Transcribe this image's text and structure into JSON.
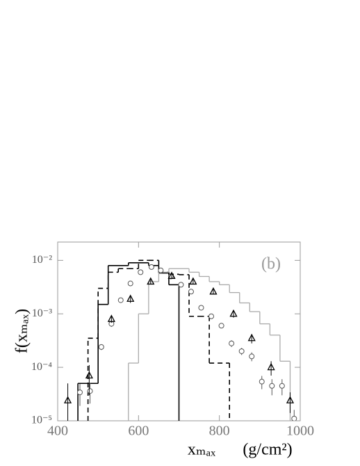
{
  "chart_data": {
    "type": "histogram",
    "annotation": "(b)",
    "xlabel": "xₘₐₓ",
    "xunit": "(g/cm²)",
    "ylabel": "f(xₘₐₓ)",
    "xlim": [
      400,
      1000
    ],
    "ylim": [
      1e-05,
      0.022
    ],
    "log_y": true,
    "xticks": [
      400,
      600,
      800,
      1000
    ],
    "yticks": [
      {
        "value": 1e-05,
        "label": "10⁻⁵"
      },
      {
        "value": 0.0001,
        "label": "10⁻⁴"
      },
      {
        "value": 0.001,
        "label": "10⁻³"
      },
      {
        "value": 0.01,
        "label": "10⁻²"
      }
    ],
    "series": [
      {
        "color": "#000000",
        "dash": "solid",
        "bins": [
          450,
          500,
          525,
          575,
          625,
          650,
          675,
          700
        ],
        "values": [
          5e-05,
          0.0015,
          0.008,
          0.009,
          0.008,
          0.0058,
          0.0035
        ]
      },
      {
        "color": "#000000",
        "dash": "dashed",
        "bins": [
          475,
          500,
          525,
          550,
          575,
          600,
          625,
          650,
          675,
          700,
          725,
          750,
          775,
          825
        ],
        "values": [
          0.00035,
          0.003,
          0.006,
          0.007,
          0.007,
          0.01,
          0.01,
          0.006,
          0.0055,
          0.0054,
          0.0009,
          0.0009,
          0.00012
        ]
      },
      {
        "color": "#aaaaaa",
        "dash": "solid",
        "bins": [
          575,
          600,
          625,
          650,
          675,
          700,
          725,
          750,
          775,
          800,
          825,
          850,
          875,
          900,
          925,
          950,
          975
        ],
        "values": [
          0.00012,
          0.001,
          0.004,
          0.006,
          0.007,
          0.007,
          0.006,
          0.005,
          0.004,
          0.0035,
          0.0025,
          0.0016,
          0.0011,
          0.00065,
          0.0004,
          0.00013
        ]
      }
    ],
    "points": [
      {
        "marker": "circle",
        "color": "#555555",
        "x": [
          455,
          480,
          508,
          533,
          556,
          580,
          605,
          632,
          655,
          680,
          705,
          730,
          755,
          780,
          805,
          830,
          855,
          880,
          905,
          930,
          955,
          985
        ],
        "values": [
          3.4e-05,
          3.6e-05,
          0.00024,
          0.00065,
          0.0018,
          0.0037,
          0.006,
          0.0075,
          0.0065,
          0.005,
          0.0035,
          0.0026,
          0.0013,
          0.0009,
          0.0006,
          0.00028,
          0.0002,
          0.00016,
          5.4e-05,
          4.5e-05,
          4.5e-05,
          1.1e-05
        ],
        "errors": [
          1.5e-05,
          1.5e-05,
          3e-05,
          8e-05,
          0.0002,
          0.0003,
          0.0004,
          0.0005,
          0.0004,
          0.0004,
          0.0003,
          0.0002,
          0.0001,
          8e-05,
          6e-05,
          4e-05,
          3e-05,
          3e-05,
          1.5e-05,
          1.5e-05,
          1.5e-05,
          5e-06
        ]
      },
      {
        "marker": "triangle",
        "color": "#000000",
        "x": [
          425,
          478,
          533,
          580,
          630,
          682,
          735,
          785,
          835,
          880,
          928,
          975
        ],
        "values": [
          2.4e-05,
          7e-05,
          0.0008,
          0.0019,
          0.004,
          0.0051,
          0.004,
          0.0026,
          0.001,
          0.00035,
          0.0001,
          2.4e-05
        ],
        "errors": [
          2.6e-05,
          4e-05,
          0.00012,
          0.0003,
          0.0004,
          0.0006,
          0.0004,
          0.0003,
          0.00015,
          7e-05,
          3e-05,
          1e-05
        ]
      }
    ]
  }
}
